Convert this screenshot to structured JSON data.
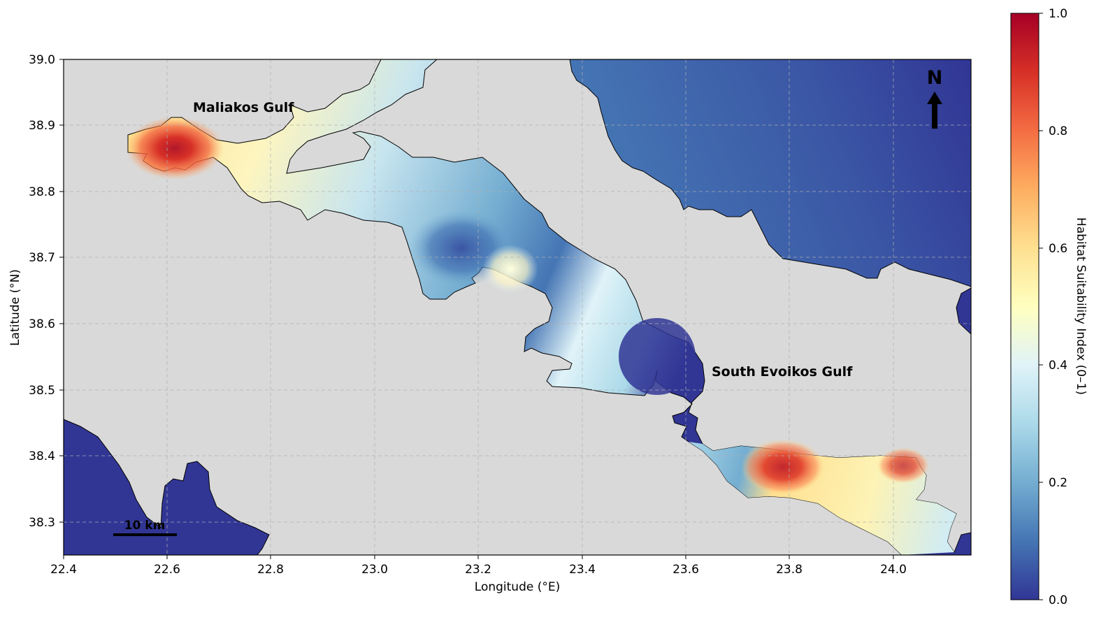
{
  "map": {
    "x_axis": {
      "label": "Longitude (°E)",
      "ticks": [
        "22.4",
        "22.6",
        "22.8",
        "23.0",
        "23.2",
        "23.4",
        "23.6",
        "23.8",
        "24.0"
      ]
    },
    "y_axis": {
      "label": "Latitude (°N)",
      "ticks": [
        "39.0",
        "38.9",
        "38.8",
        "38.7",
        "38.6",
        "38.5",
        "38.4",
        "38.3"
      ]
    },
    "extent": {
      "lon": [
        22.4,
        24.15
      ],
      "lat": [
        38.25,
        39.0
      ]
    },
    "grid": true,
    "place_labels": {
      "maliakos": "Maliakos Gulf",
      "south_evoikos": "South Evoikos Gulf"
    },
    "north_arrow": "N",
    "scale_bar": "10 km",
    "colorbar": {
      "label": "Habitat Suitability Index (0–1)",
      "ticks": [
        "0.0",
        "0.2",
        "0.4",
        "0.6",
        "0.8",
        "1.0"
      ],
      "colormap": "RdYlBu_r"
    },
    "colors": {
      "land": "#d9d9d9",
      "low": "#313695",
      "mid": "#ffffbf",
      "high": "#a50026"
    },
    "hotspots": [
      {
        "lon": 22.61,
        "lat": 38.86,
        "hsi": 0.95
      },
      {
        "lon": 23.79,
        "lat": 38.39,
        "hsi": 0.9
      },
      {
        "lon": 24.03,
        "lat": 38.39,
        "hsi": 0.8
      }
    ]
  }
}
